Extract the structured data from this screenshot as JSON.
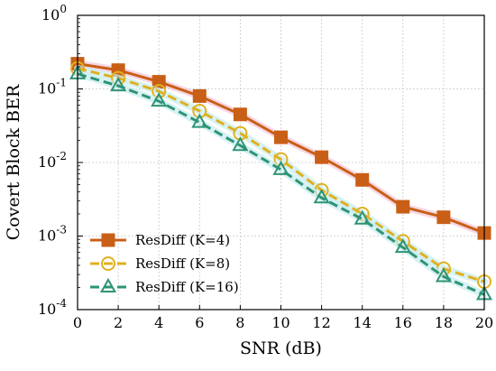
{
  "chart_data": {
    "type": "line",
    "xlabel": "SNR (dB)",
    "ylabel": "Covert Block BER",
    "xlim": [
      0,
      20
    ],
    "ylim": [
      0.0001,
      1
    ],
    "yscale": "log",
    "grid": true,
    "legend_position": "bottom-left",
    "x": [
      0,
      2,
      4,
      6,
      8,
      10,
      12,
      14,
      16,
      18,
      20
    ],
    "x_ticks": [
      "0",
      "2",
      "4",
      "6",
      "8",
      "10",
      "12",
      "14",
      "16",
      "18",
      "20"
    ],
    "y_ticks": [
      {
        "value": 1,
        "base": "10",
        "exp": "0"
      },
      {
        "value": 0.1,
        "base": "10",
        "exp": "-1"
      },
      {
        "value": 0.01,
        "base": "10",
        "exp": "-2"
      },
      {
        "value": 0.001,
        "base": "10",
        "exp": "-3"
      },
      {
        "value": 0.0001,
        "base": "10",
        "exp": "-4"
      }
    ],
    "series": [
      {
        "name": "ResDiff (K=4)",
        "values": [
          0.22,
          0.18,
          0.125,
          0.08,
          0.045,
          0.022,
          0.0118,
          0.0058,
          0.0025,
          0.0018,
          0.0011
        ],
        "color": "#c95f16",
        "marker": "square",
        "dash": "solid",
        "halo": "#f4c6d8"
      },
      {
        "name": "ResDiff (K=8)",
        "values": [
          0.19,
          0.14,
          0.093,
          0.05,
          0.025,
          0.011,
          0.0042,
          0.002,
          0.00085,
          0.00036,
          0.00024
        ],
        "color": "#e0b020",
        "marker": "circle",
        "dash": "dashed",
        "halo": "#c7ecef"
      },
      {
        "name": "ResDiff (K=16)",
        "values": [
          0.16,
          0.11,
          0.068,
          0.035,
          0.017,
          0.008,
          0.0033,
          0.0017,
          0.0007,
          0.00028,
          0.00016
        ],
        "color": "#2e9476",
        "marker": "triangle",
        "dash": "dashed",
        "halo": "#c7ecef"
      }
    ]
  }
}
